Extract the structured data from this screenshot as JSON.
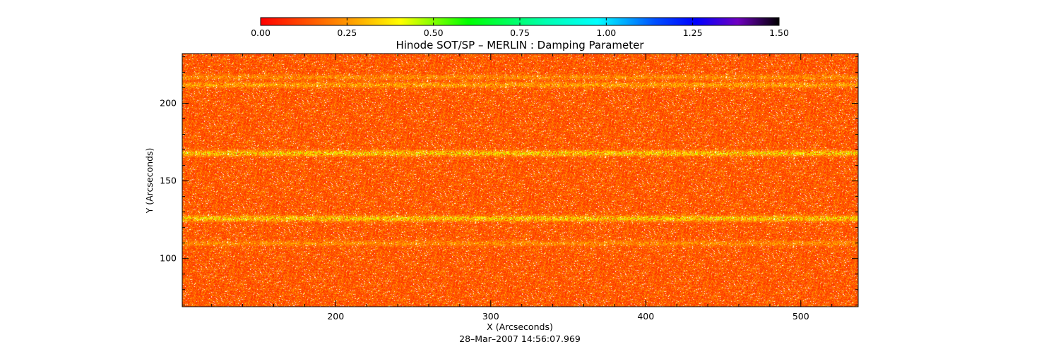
{
  "chart_data": {
    "type": "heatmap",
    "title": "Hinode SOT/SP – MERLIN : Damping Parameter",
    "xlabel": "X (Arcseconds)",
    "ylabel": "Y (Arcseconds)",
    "footer": "28–Mar–2007 14:56:07.969",
    "xlim": [
      101,
      537
    ],
    "ylim": [
      69,
      232
    ],
    "xticks": [
      200,
      300,
      400,
      500
    ],
    "yticks": [
      100,
      150,
      200
    ],
    "colorbar": {
      "range": [
        0,
        1.5
      ],
      "ticks": [
        "0.00",
        "0.25",
        "0.50",
        "0.75",
        "1.00",
        "1.25",
        "1.50"
      ],
      "colormap": "rainbow (red → yellow → green → cyan → blue → violet → black)"
    },
    "dominant_value": "~0.05–0.2 (red/orange)",
    "enhanced_bands": [
      {
        "y_center": 168,
        "approx_value": 0.45,
        "description": "green/yellow band"
      },
      {
        "y_center": 126,
        "approx_value": 0.45,
        "description": "green/yellow band"
      },
      {
        "y_center": 217,
        "approx_value": 0.3,
        "description": "weaker yellow band"
      },
      {
        "y_center": 212,
        "approx_value": 0.35,
        "description": "weaker yellow band"
      },
      {
        "y_center": 110,
        "approx_value": 0.3,
        "description": "weaker yellow band"
      }
    ]
  }
}
